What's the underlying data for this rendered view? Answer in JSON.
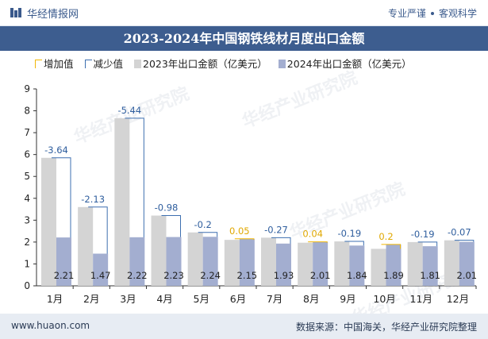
{
  "header": {
    "site_name": "华经情报网",
    "slogan_left": "专业严谨",
    "slogan_right": "客观科学"
  },
  "footer": {
    "url": "www.huaon.com",
    "source": "数据来源：中国海关，华经产业研究院整理"
  },
  "watermark": "华经产业研究院",
  "colors": {
    "bar_2023": "#d4d4d4",
    "bar_2024": "#a3aed0",
    "increase": "#f2b705",
    "decrease": "#3d6fb0",
    "title_bg": "#3d5d8f"
  },
  "chart_data": {
    "type": "bar",
    "title": "2023-2024年中国钢铁线材月度出口金额",
    "categories": [
      "1月",
      "2月",
      "3月",
      "4月",
      "5月",
      "6月",
      "7月",
      "8月",
      "9月",
      "10月",
      "11月",
      "12月"
    ],
    "series": [
      {
        "name": "2023年出口金额（亿美元）",
        "values": [
          5.85,
          3.6,
          7.66,
          3.21,
          2.44,
          2.1,
          2.2,
          1.97,
          2.03,
          1.69,
          2.0,
          2.08
        ]
      },
      {
        "name": "2024年出口金额（亿美元）",
        "values": [
          2.21,
          1.47,
          2.22,
          2.23,
          2.24,
          2.15,
          1.93,
          2.01,
          1.84,
          1.89,
          1.81,
          2.01
        ]
      }
    ],
    "changes": [
      -3.64,
      -2.13,
      -5.44,
      -0.98,
      -0.2,
      0.05,
      -0.27,
      0.04,
      -0.19,
      0.2,
      -0.19,
      -0.07
    ],
    "change_labels": [
      "-3.64",
      "-2.13",
      "-5.44",
      "-0.98",
      "-0.2",
      "0.05",
      "-0.27",
      "0.04",
      "-0.19",
      "0.2",
      "-0.19",
      "-0.07"
    ],
    "value_labels_2024": [
      "2.21",
      "1.47",
      "2.22",
      "2.23",
      "2.24",
      "2.15",
      "1.93",
      "2.01",
      "1.84",
      "1.89",
      "1.81",
      "2.01"
    ],
    "legend": [
      "增加值",
      "减少值",
      "2023年出口金额（亿美元）",
      "2024年出口金额（亿美元）"
    ],
    "yticks": [
      0,
      1,
      2,
      3,
      4,
      5,
      6,
      7,
      8,
      9
    ],
    "ylim": [
      0,
      9
    ],
    "grid": false,
    "legend_position": "top-left"
  }
}
